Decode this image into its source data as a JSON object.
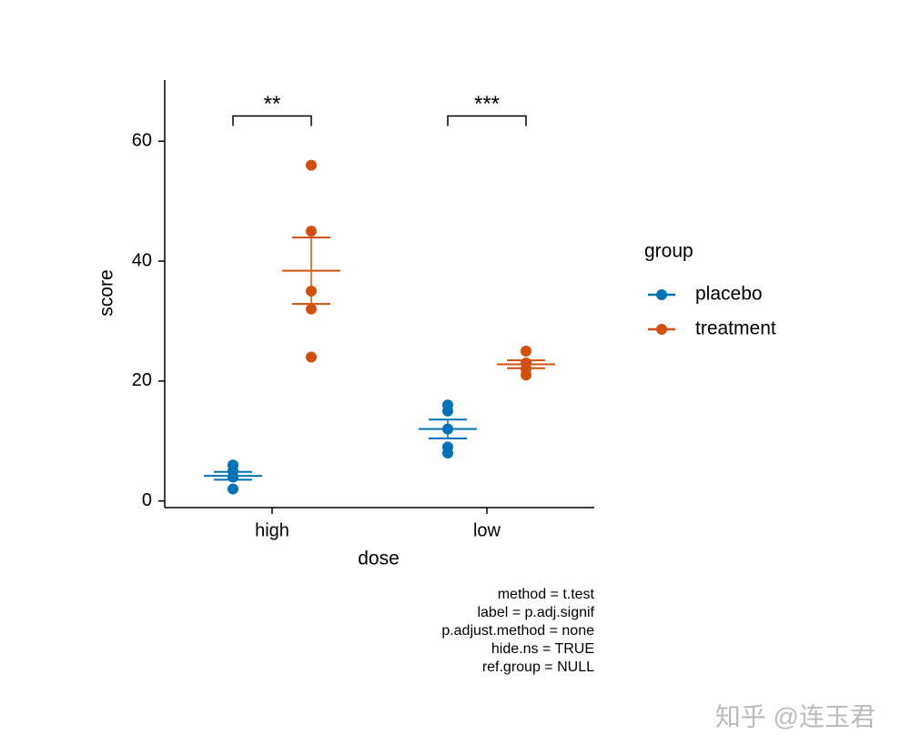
{
  "chart_data": {
    "type": "dotplot",
    "x_label": "dose",
    "y_label": "score",
    "categories": [
      "high",
      "low"
    ],
    "series": [
      {
        "name": "placebo",
        "color": "#0072B5",
        "values": [
          [
            2,
            4,
            4,
            5,
            6
          ],
          [
            8,
            9,
            12,
            15,
            16
          ]
        ],
        "mean": [
          4.2,
          12
        ],
        "se": [
          0.66,
          1.58
        ]
      },
      {
        "name": "treatment",
        "color": "#D2500E",
        "values": [
          [
            24,
            32,
            35,
            45,
            56
          ],
          [
            21,
            22,
            23,
            23,
            25
          ]
        ],
        "mean": [
          38.4,
          22.8
        ],
        "se": [
          5.54,
          0.66
        ]
      }
    ],
    "comparisons": [
      {
        "category": "high",
        "label": "**",
        "y": 64.2
      },
      {
        "category": "low",
        "label": "***",
        "y": 64.2
      }
    ],
    "ylim": [
      -1.1,
      70.2
    ],
    "yticks": [
      0,
      20,
      40,
      60
    ],
    "legend_title": "group",
    "legend": "right",
    "caption": [
      "method = t.test",
      "label = p.adj.signif",
      "p.adjust.method = none",
      "hide.ns = TRUE",
      "ref.group = NULL"
    ],
    "watermark": "知乎 @连玉君"
  }
}
